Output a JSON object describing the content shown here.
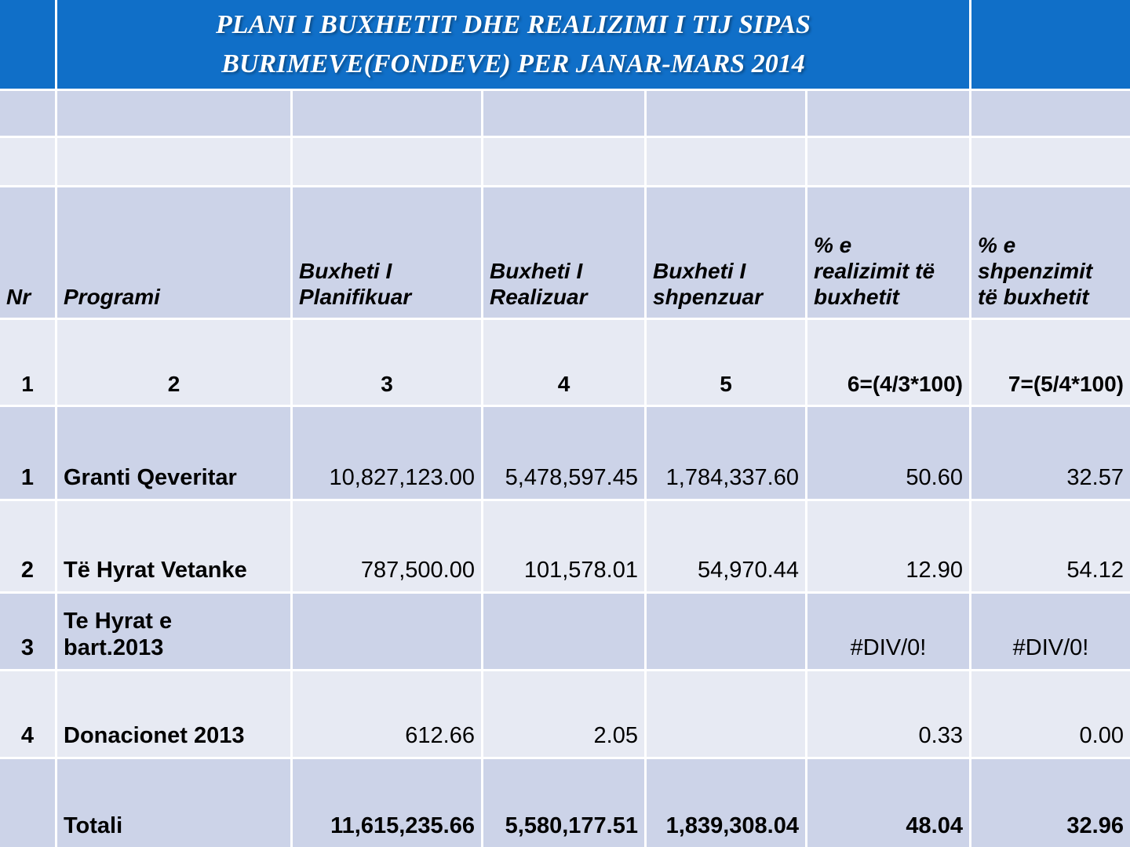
{
  "title": "PLANI I BUXHETIT DHE REALIZIMI I TIJ SIPAS\nBURIMEVE(FONDEVE) PER JANAR-MARS 2014",
  "colors": {
    "header_blue": "#106fc8",
    "row_dark": "#ccd3e8",
    "row_light": "#e7eaf3",
    "gridline": "#ffffff",
    "title_text": "#ffffff",
    "body_text": "#000000"
  },
  "table": {
    "columns": [
      {
        "key": "nr",
        "label": "Nr"
      },
      {
        "key": "programi",
        "label": "Programi"
      },
      {
        "key": "planifikuar",
        "label": "Buxheti I\nPlanifikuar"
      },
      {
        "key": "realizuar",
        "label": "Buxheti I\nRealizuar"
      },
      {
        "key": "shpenzuar",
        "label": "Buxheti I\nshpenzuar"
      },
      {
        "key": "perc_realizimit",
        "label": "% e\nrealizimit të\nbuxhetit"
      },
      {
        "key": "perc_shpenzimit",
        "label": "% e\nshpenzimit\ntë buxhetit"
      }
    ],
    "index_row": [
      "1",
      "2",
      "3",
      "4",
      "5",
      "6=(4/3*100)",
      "7=(5/4*100)"
    ],
    "rows": [
      {
        "nr": "1",
        "programi": "Granti Qeveritar",
        "planifikuar": "10,827,123.00",
        "realizuar": "5,478,597.45",
        "shpenzuar": "1,784,337.60",
        "perc_realizimit": "50.60",
        "perc_shpenzimit": "32.57"
      },
      {
        "nr": "2",
        "programi": "Të Hyrat Vetanke",
        "planifikuar": "787,500.00",
        "realizuar": "101,578.01",
        "shpenzuar": "54,970.44",
        "perc_realizimit": "12.90",
        "perc_shpenzimit": "54.12"
      },
      {
        "nr": "3",
        "programi": "Te Hyrat e\nbart.2013",
        "planifikuar": "",
        "realizuar": "",
        "shpenzuar": "",
        "perc_realizimit": "#DIV/0!",
        "perc_shpenzimit": "#DIV/0!"
      },
      {
        "nr": "4",
        "programi": "Donacionet 2013",
        "planifikuar": "612.66",
        "realizuar": "2.05",
        "shpenzuar": "",
        "perc_realizimit": "0.33",
        "perc_shpenzimit": "0.00"
      }
    ],
    "total_row": {
      "nr": "",
      "programi": "Totali",
      "planifikuar": "11,615,235.66",
      "realizuar": "5,580,177.51",
      "shpenzuar": "1,839,308.04",
      "perc_realizimit": "48.04",
      "perc_shpenzimit": "32.96"
    }
  }
}
